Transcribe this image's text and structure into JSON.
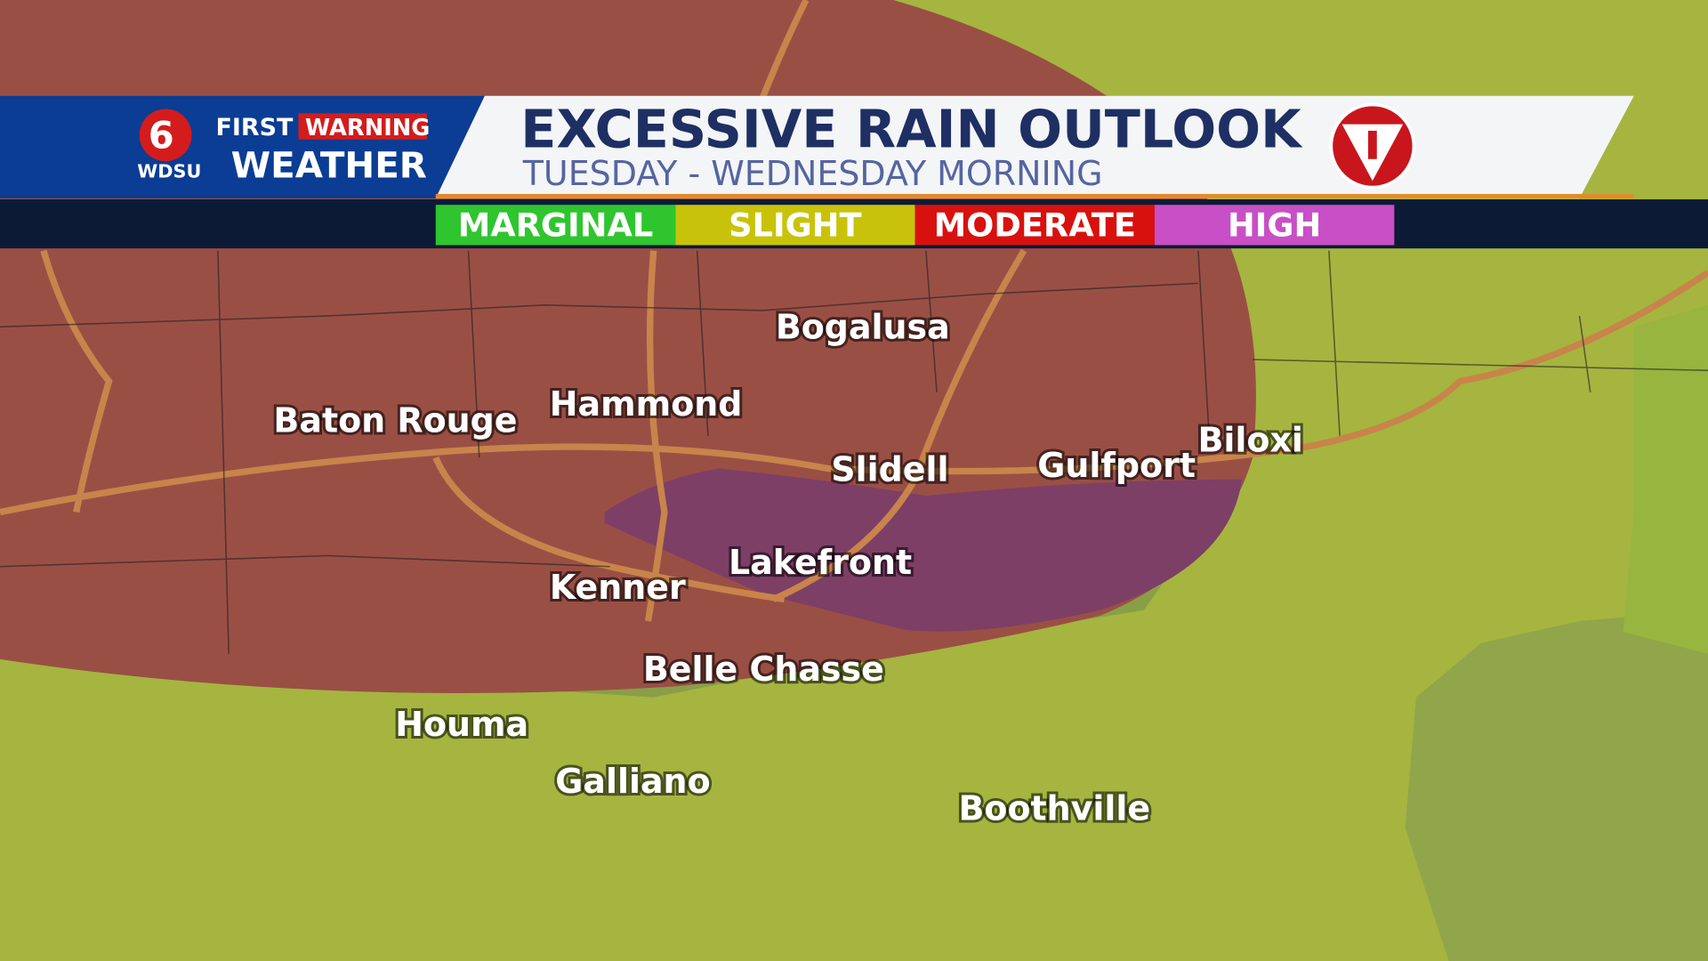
{
  "header": {
    "logo_number": "6",
    "logo_first": "FIRST",
    "logo_warning": "WARNING",
    "logo_station": "WDSU",
    "logo_weather": "WEATHER",
    "title": "EXCESSIVE RAIN OUTLOOK",
    "subtitle": "TUESDAY - WEDNESDAY MORNING"
  },
  "legend": [
    {
      "label": "MARGINAL",
      "color": "#2fc52f"
    },
    {
      "label": "SLIGHT",
      "color": "#c8c30a"
    },
    {
      "label": "MODERATE",
      "color": "#d8110f"
    },
    {
      "label": "HIGH",
      "color": "#c84fc6"
    }
  ],
  "cities": [
    "Bogalusa",
    "Hammond",
    "Baton Rouge",
    "Slidell",
    "Gulfport",
    "Biloxi",
    "Lakefront",
    "Kenner",
    "Belle Chasse",
    "Houma",
    "Galliano",
    "Boothville"
  ]
}
